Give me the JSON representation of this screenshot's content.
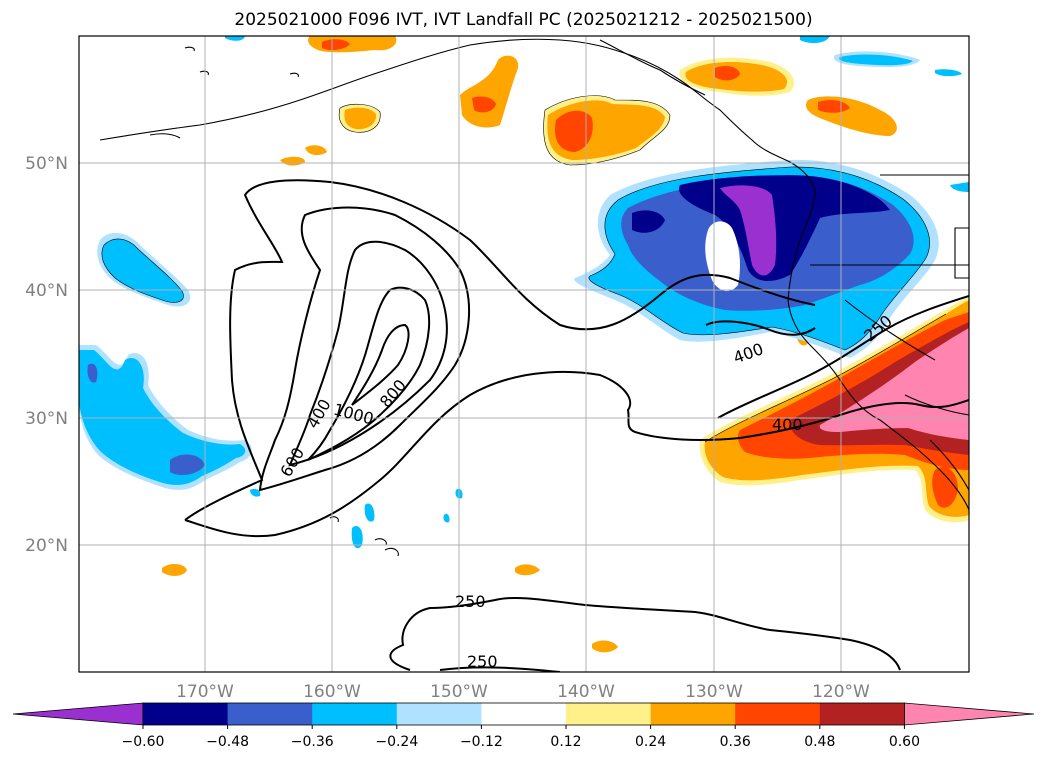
{
  "title": "2025021000 F096 IVT, IVT Landfall PC (2025021212 - 2025021500)",
  "lat_labels": [
    "50°N",
    "40°N",
    "30°N",
    "20°N"
  ],
  "lon_labels": [
    "170°W",
    "160°W",
    "150°W",
    "140°W",
    "130°W",
    "120°W"
  ],
  "contour_labels": [
    "400",
    "600",
    "1000",
    "800",
    "400",
    "400",
    "250",
    "250",
    "250"
  ],
  "colorbar": {
    "colors": [
      "#9b30d0",
      "#00008b",
      "#3a5fcd",
      "#00bfff",
      "#b0e2ff",
      "#ffffff",
      "#fff08a",
      "#ffa500",
      "#ff4500",
      "#b22222",
      "#ff85b0"
    ],
    "tick_labels": [
      "−0.60",
      "−0.48",
      "−0.36",
      "−0.24",
      "−0.12",
      "0.12",
      "0.24",
      "0.36",
      "0.48",
      "0.60"
    ]
  },
  "fill_colors": {
    "purple": "#9b30d0",
    "navy": "#00008b",
    "royal": "#3a5fcd",
    "cyan": "#00bfff",
    "lightblue": "#b0e2ff",
    "yellow": "#fff08a",
    "orange": "#ffa500",
    "redorange": "#ff4500",
    "firebrick": "#b22222",
    "pink": "#ff85b0"
  }
}
